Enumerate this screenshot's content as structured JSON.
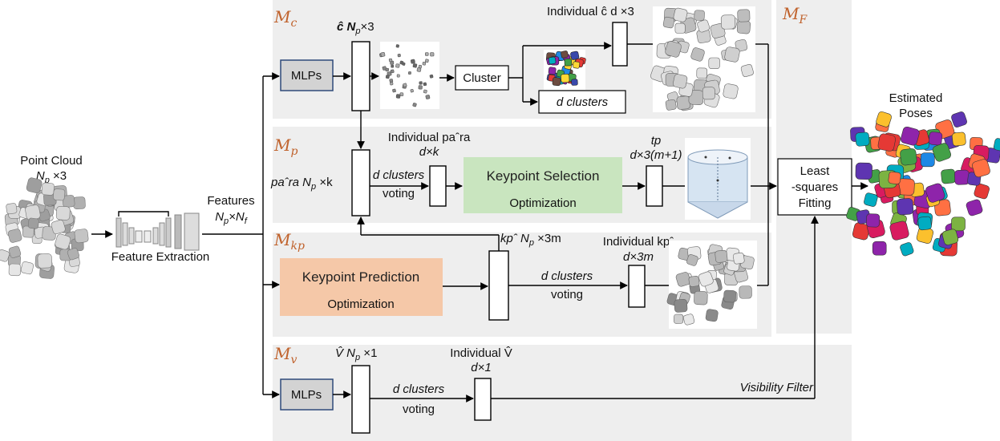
{
  "input": {
    "title": "Point Cloud",
    "dims": "N",
    "dims_sub": "p",
    "dims_rest": " ×3"
  },
  "feature": {
    "label": "Feature Extraction",
    "features_title": "Features",
    "features_dims": "N",
    "features_sub1": "p",
    "features_times": "×N",
    "features_sub2": "f"
  },
  "mc": {
    "label": "M",
    "label_sub": "c",
    "mlp": "MLPs",
    "out_label": "ĉ N",
    "out_sub": "p",
    "out_rest": "×3",
    "cluster": "Cluster",
    "d_clusters": "d clusters",
    "individual": "Individual ĉ d ×3"
  },
  "mp": {
    "label": "M",
    "label_sub": "p",
    "in_label": "paˆra N",
    "in_sub": "p",
    "in_rest": " ×k",
    "individual_1": "Individual paˆra",
    "individual_2": "d×k",
    "vote_1": "d clusters",
    "vote_2": "voting",
    "selection_1": "Keypoint Selection",
    "selection_2": "Optimization",
    "tp_1": "tp",
    "tp_2": "d×3(m+1)"
  },
  "mkp": {
    "label": "M",
    "label_sub": "kp",
    "prediction_1": "Keypoint Prediction",
    "prediction_2": "Optimization",
    "out_label": "kpˆ N",
    "out_sub": "p",
    "out_rest": " ×3m",
    "vote_1": "d clusters",
    "vote_2": "voting",
    "individual_1": "Individual kpˆ",
    "individual_2": "d×3m"
  },
  "mv": {
    "label": "M",
    "label_sub": "v",
    "mlp": "MLPs",
    "out_label": "V̂ N",
    "out_sub": "p",
    "out_rest": " ×1",
    "vote_1": "d clusters",
    "vote_2": "voting",
    "individual_1": "Individual V̂",
    "individual_2": "d×1",
    "filter": "Visibility Filter"
  },
  "mf": {
    "label": "M",
    "label_sub": "F",
    "fit_1": "Least",
    "fit_2": "-squares",
    "fit_3": "Fitting"
  },
  "output": {
    "title_1": "Estimated",
    "title_2": "Poses"
  },
  "colors": {
    "panel": "#eeeeee",
    "mlp_fill": "#d3d3d3",
    "mlp_border": "#2e4a7a",
    "selection": "#c9e5bf",
    "prediction": "#f5c8a8",
    "module_label": "#c0622c"
  }
}
